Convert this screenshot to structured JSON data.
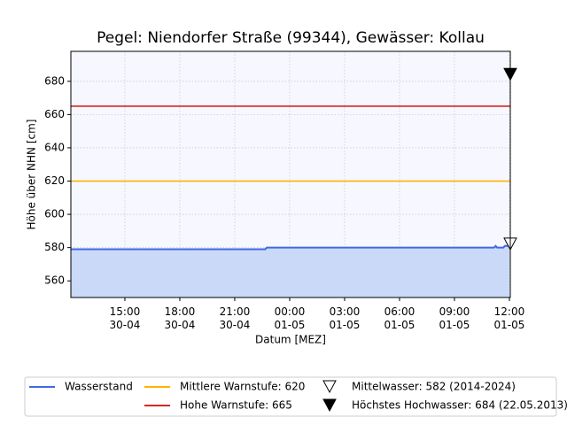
{
  "chart_data": {
    "type": "line",
    "title": "Pegel:  Niendorfer Straße (99344), Gewässer:  Kollau",
    "xlabel": "Datum [MEZ]",
    "ylabel": "Höhe über NHN [cm]",
    "x": [
      "30-04 12:03",
      "30-04 22:40",
      "30-04 22:45",
      "01-05 11:10",
      "01-05 11:15",
      "01-05 11:20",
      "01-05 11:40",
      "01-05 11:45",
      "01-05 12:00"
    ],
    "series": [
      {
        "name": "Wasserstand",
        "color": "#4169e1",
        "fill": "#c9d9f7",
        "values": [
          579,
          579,
          580,
          580,
          581,
          580,
          580,
          581,
          581
        ]
      }
    ],
    "hlines": [
      {
        "name": "Mittlere Warnstufe: 620",
        "value": 620,
        "color": "#ffb300"
      },
      {
        "name": "Hohe Warnstufe: 665",
        "value": 665,
        "color": "#d62728"
      }
    ],
    "markers": [
      {
        "name": "Mittelwasser: 582 (2014-2024)",
        "x": "01-05 12:03",
        "value": 582,
        "filled": false
      },
      {
        "name": "Höchstes Hochwasser: 684 (22.05.2013)",
        "x": "01-05 12:03",
        "value": 684,
        "filled": true
      }
    ],
    "xlim": [
      "30-04 12:03",
      "01-05 12:03"
    ],
    "xticks": [
      {
        "value": "30-04 15:00",
        "label": "15:00\n30-04"
      },
      {
        "value": "30-04 18:00",
        "label": "18:00\n30-04"
      },
      {
        "value": "30-04 21:00",
        "label": "21:00\n30-04"
      },
      {
        "value": "01-05 00:00",
        "label": "00:00\n01-05"
      },
      {
        "value": "01-05 03:00",
        "label": "03:00\n01-05"
      },
      {
        "value": "01-05 06:00",
        "label": "06:00\n01-05"
      },
      {
        "value": "01-05 09:00",
        "label": "09:00\n01-05"
      },
      {
        "value": "01-05 12:00",
        "label": "12:00\n01-05"
      }
    ],
    "ylim": [
      550,
      698
    ],
    "yticks": [
      560,
      580,
      600,
      620,
      640,
      660,
      680
    ],
    "grid": true,
    "legend": "bottom"
  }
}
